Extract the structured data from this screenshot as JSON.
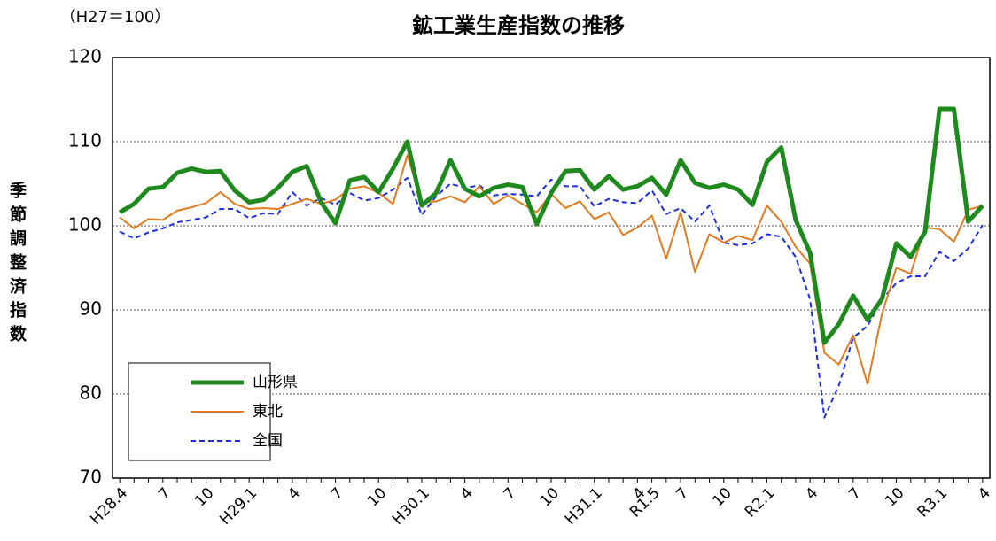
{
  "chart_data": {
    "type": "line",
    "title": "鉱工業生産指数の推移",
    "unit_note": "（H27＝100）",
    "y_label": "季節調整済指数",
    "categories": [
      "H28.4",
      null,
      null,
      "7",
      null,
      null,
      "10",
      null,
      null,
      "H29.1",
      null,
      null,
      "4",
      null,
      null,
      "7",
      null,
      null,
      "10",
      null,
      null,
      "H30.1",
      null,
      null,
      "4",
      null,
      null,
      "7",
      null,
      null,
      "10",
      null,
      null,
      "H31.1",
      null,
      null,
      "4",
      "R1.5",
      null,
      "7",
      null,
      null,
      "10",
      null,
      null,
      "R2.1",
      null,
      null,
      "4",
      null,
      null,
      "7",
      null,
      null,
      "10",
      null,
      null,
      "R3.1",
      null,
      null,
      "4"
    ],
    "series": [
      {
        "name": "山形県",
        "color": "#1e8a1e",
        "line_style": "solid",
        "values": [
          101.6,
          102.6,
          104.4,
          104.6,
          106.3,
          106.8,
          106.4,
          106.5,
          104.2,
          102.8,
          103.1,
          104.5,
          106.4,
          107.1,
          102.8,
          100.3,
          105.4,
          105.8,
          104.0,
          106.8,
          110.0,
          102.4,
          103.9,
          107.8,
          104.4,
          103.5,
          104.5,
          104.9,
          104.6,
          100.2,
          103.9,
          106.5,
          106.6,
          104.3,
          105.9,
          104.3,
          104.7,
          105.7,
          103.7,
          107.8,
          105.1,
          104.5,
          104.9,
          104.3,
          102.5,
          107.6,
          109.3,
          100.7,
          96.8,
          86.1,
          88.3,
          91.7,
          88.8,
          91.3,
          97.9,
          96.3,
          99.3,
          113.9,
          113.9,
          100.5,
          102.4
        ]
      },
      {
        "name": "東北",
        "color": "#e07b20",
        "line_style": "solid",
        "values": [
          101.0,
          99.7,
          100.8,
          100.7,
          101.8,
          102.2,
          102.7,
          104.0,
          102.6,
          102.0,
          102.1,
          102.0,
          102.6,
          103.2,
          102.6,
          103.1,
          104.4,
          104.7,
          103.9,
          102.6,
          108.4,
          102.8,
          102.9,
          103.5,
          102.8,
          104.7,
          102.6,
          103.6,
          102.6,
          101.6,
          103.8,
          102.1,
          102.9,
          100.8,
          101.6,
          98.9,
          99.8,
          101.2,
          96.1,
          101.6,
          94.5,
          99.0,
          98.0,
          98.8,
          98.3,
          102.4,
          100.5,
          97.5,
          95.5,
          84.9,
          83.5,
          87.0,
          81.2,
          89.5,
          95.0,
          94.3,
          99.8,
          99.6,
          98.1,
          101.9,
          102.4
        ]
      },
      {
        "name": "全国",
        "color": "#1a2ee0",
        "line_style": "dashed",
        "values": [
          99.3,
          98.5,
          99.2,
          99.7,
          100.4,
          100.7,
          101.0,
          102.0,
          102.0,
          100.9,
          101.5,
          101.4,
          104.0,
          102.4,
          103.3,
          102.5,
          103.9,
          103.0,
          103.3,
          104.3,
          105.7,
          101.3,
          103.5,
          105.0,
          104.5,
          104.8,
          103.6,
          103.8,
          103.7,
          103.5,
          105.5,
          104.7,
          104.7,
          102.3,
          103.2,
          102.8,
          102.7,
          104.2,
          101.4,
          102.1,
          100.5,
          102.4,
          98.0,
          97.7,
          97.9,
          99.0,
          98.7,
          96.3,
          91.3,
          77.2,
          81.0,
          86.7,
          88.1,
          91.2,
          93.2,
          94.0,
          94.0,
          96.9,
          95.8,
          97.3,
          100.1
        ]
      }
    ],
    "ylim": [
      70,
      120
    ],
    "yticks": [
      70,
      80,
      90,
      100,
      110,
      120
    ],
    "grid": true,
    "legend": "lower-left"
  }
}
